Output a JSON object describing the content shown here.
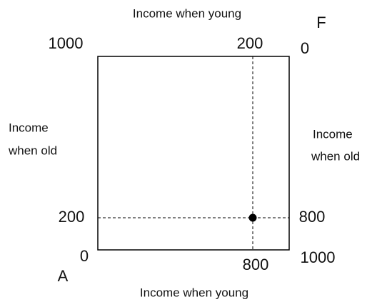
{
  "top_axis": {
    "label": "Income when young",
    "left_value": "1000",
    "mark_value": "200",
    "right_value": "0",
    "corner": "F"
  },
  "bottom_axis": {
    "label": "Income when young",
    "left_value": "0",
    "mark_value": "800",
    "right_value": "1000",
    "corner": "A"
  },
  "left_axis": {
    "label_lines": [
      "Income",
      "when old"
    ],
    "mark_value": "200"
  },
  "right_axis": {
    "label_lines": [
      "Income",
      "when old"
    ],
    "mark_value": "800"
  }
}
